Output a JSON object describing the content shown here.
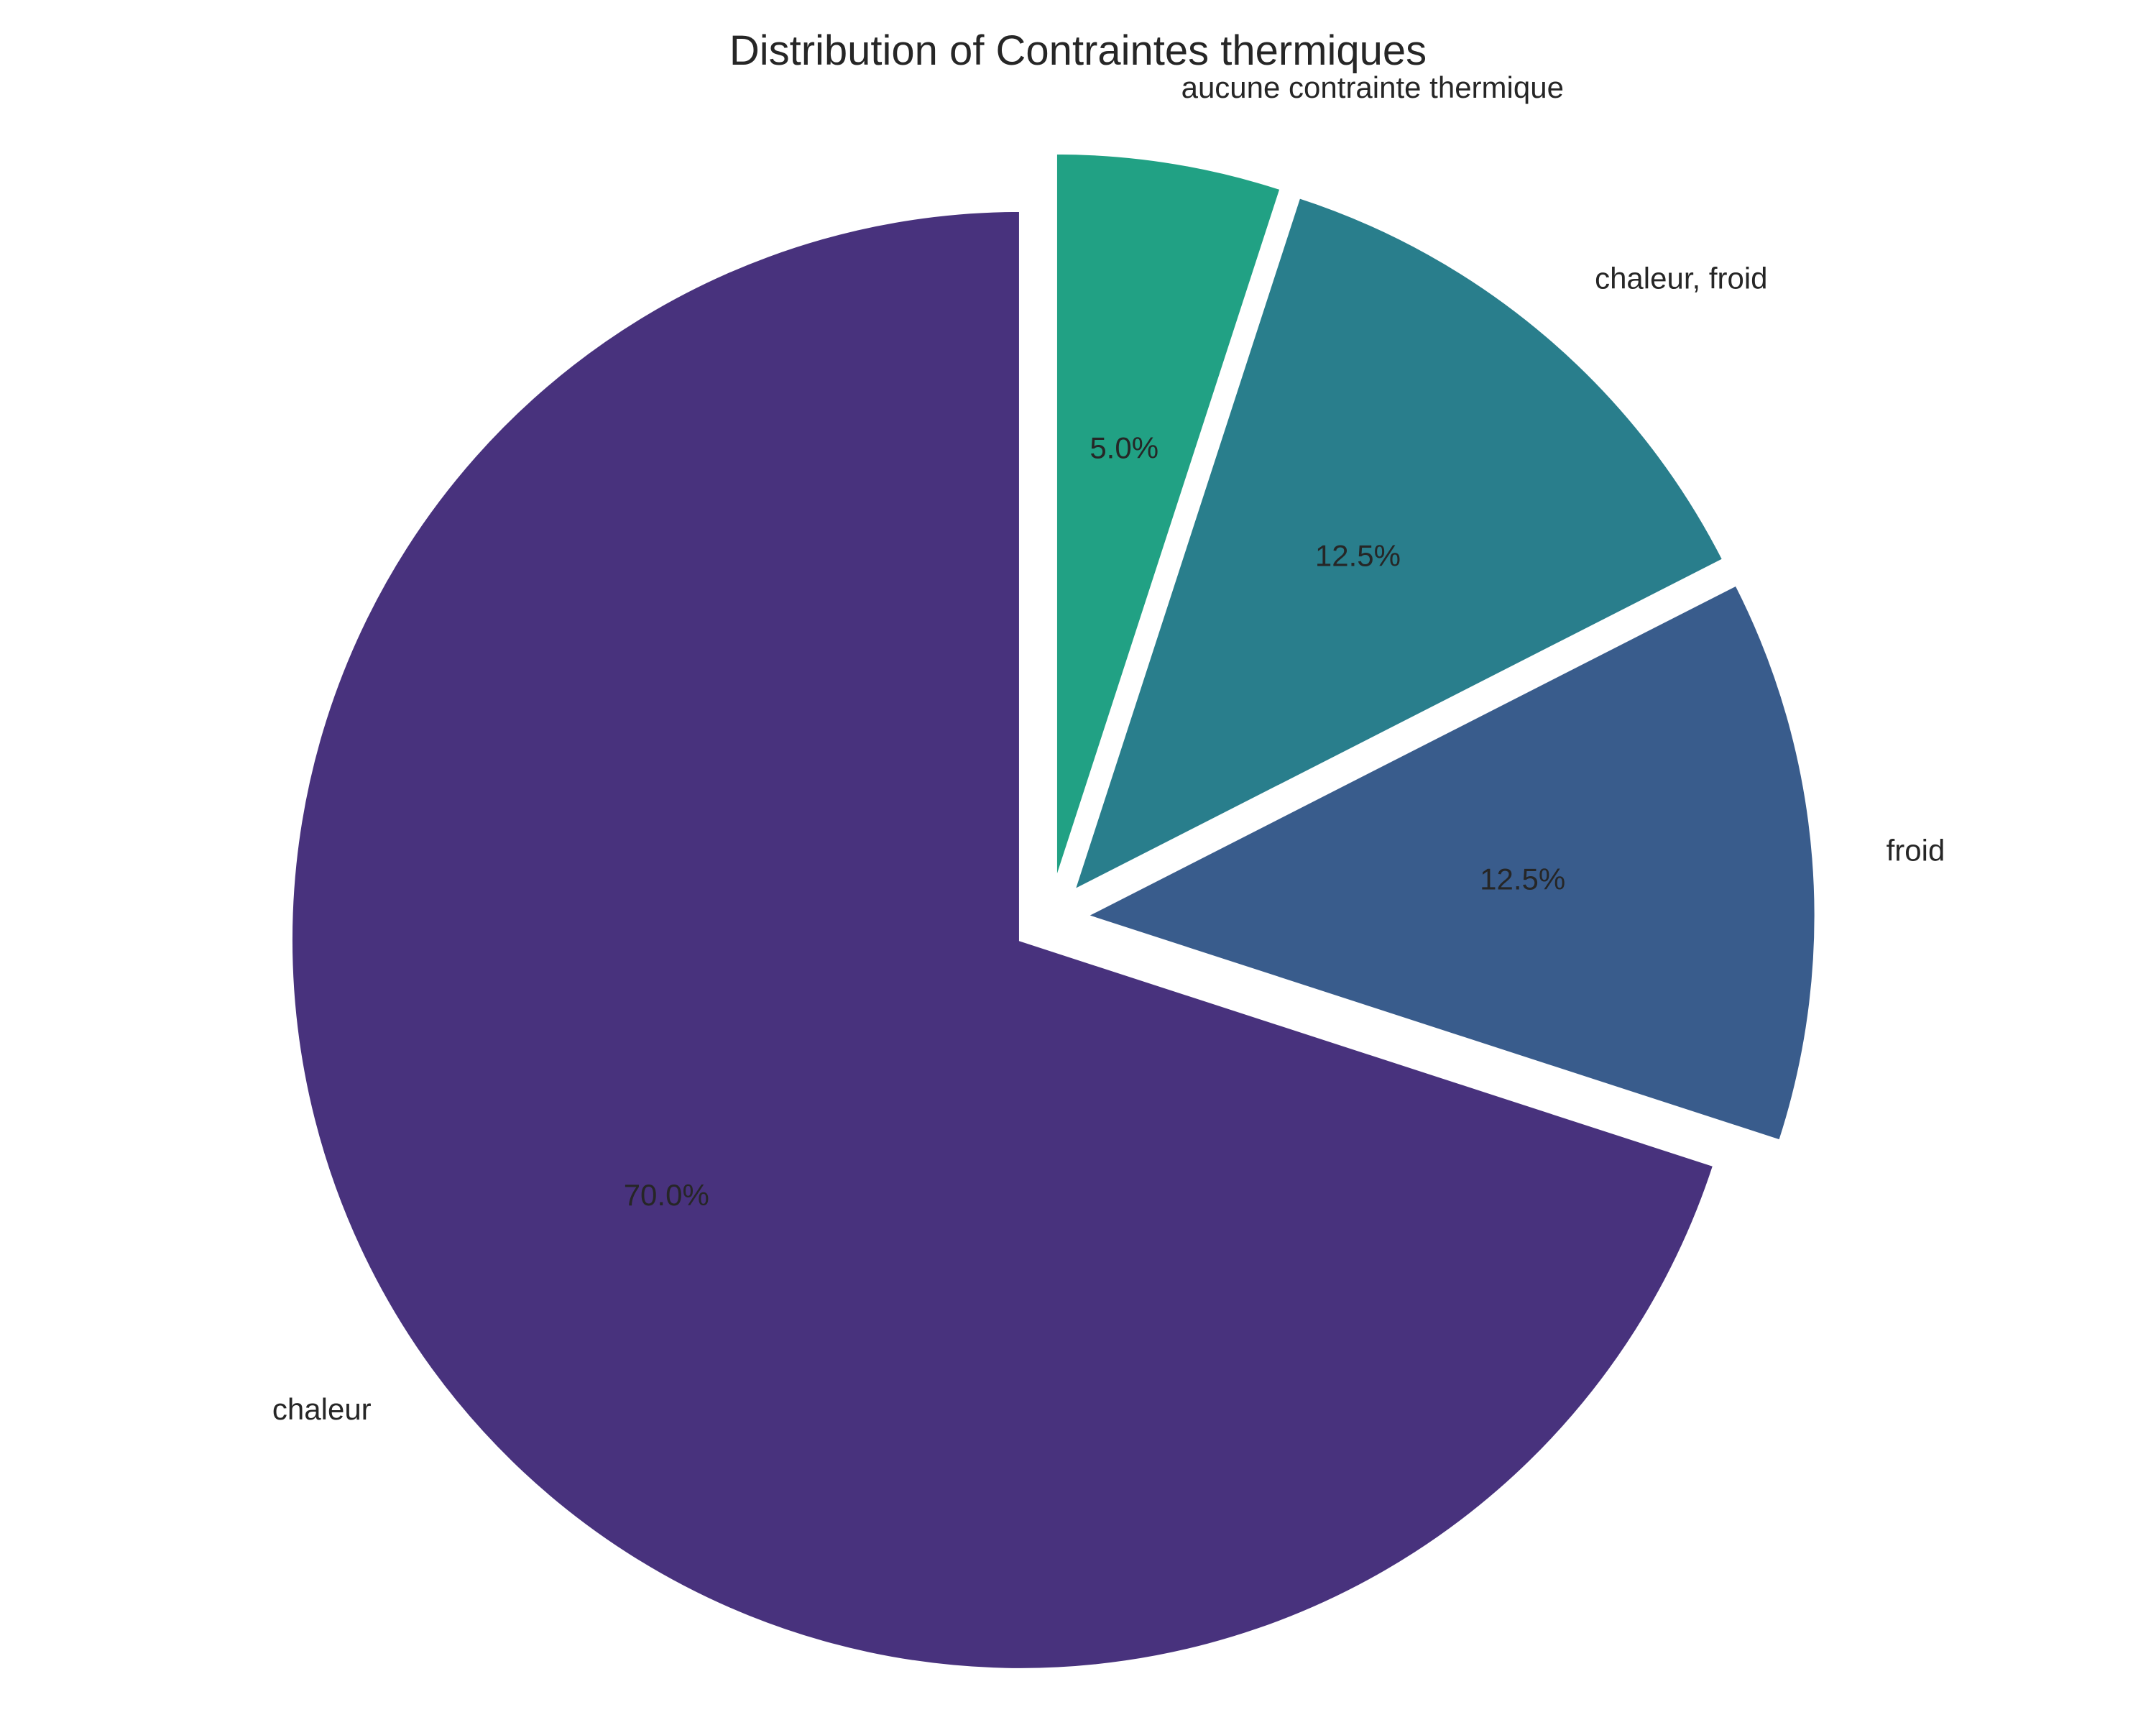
{
  "chart_data": {
    "type": "pie",
    "title": "Distribution of Contraintes thermiques",
    "slices": [
      {
        "label": "chaleur",
        "value": 70.0,
        "value_label": "70.0%",
        "color": "#48327d"
      },
      {
        "label": "froid",
        "value": 12.5,
        "value_label": "12.5%",
        "color": "#395c8c"
      },
      {
        "label": "chaleur, froid",
        "value": 12.5,
        "value_label": "12.5%",
        "color": "#297e8c"
      },
      {
        "label": "aucune contrainte thermique",
        "value": 5.0,
        "value_label": "5.0%",
        "color": "#21a184"
      }
    ],
    "start_angle_deg": 90,
    "direction": "counterclockwise",
    "exploded": true,
    "legend": "none",
    "grid": false
  }
}
